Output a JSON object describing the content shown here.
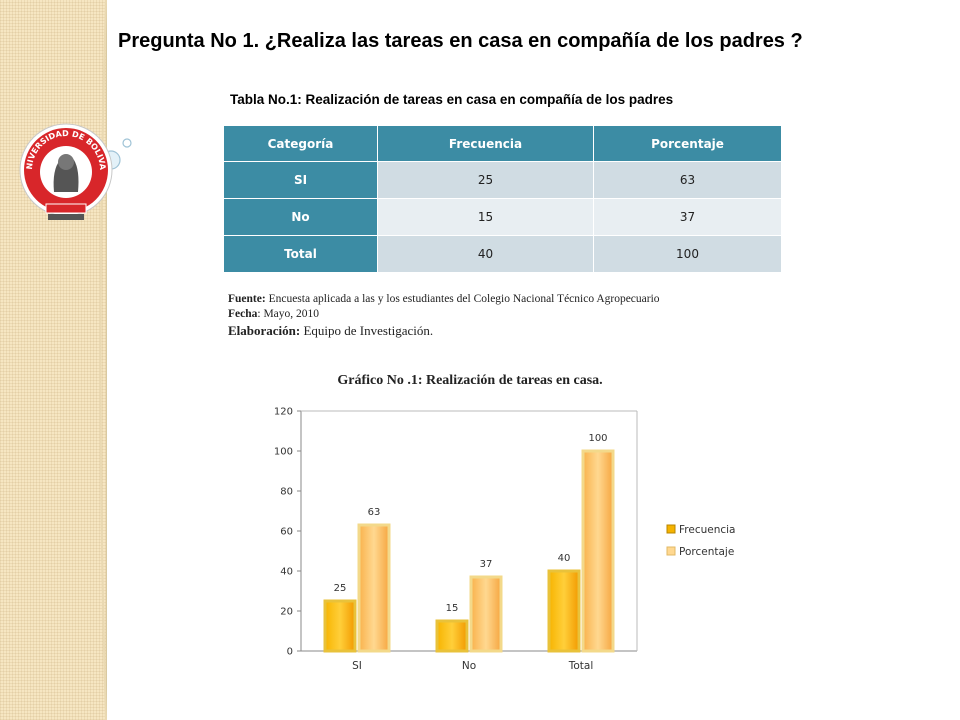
{
  "slide": {
    "title": "Pregunta No 1. ¿Realiza las tareas en casa en compañía de los padres ?"
  },
  "logo": {
    "text_top": "UNIVERSIDAD DE BOLIVAR",
    "icon": "university-seal-icon"
  },
  "table": {
    "caption": "Tabla No.1: Realización de tareas en casa en compañía de los padres",
    "headers": [
      "Categoría",
      "Frecuencia",
      "Porcentaje"
    ],
    "rows": [
      {
        "categoria": "SI",
        "frecuencia": "25",
        "porcentaje": "63"
      },
      {
        "categoria": "No",
        "frecuencia": "15",
        "porcentaje": "37"
      },
      {
        "categoria": "Total",
        "frecuencia": "40",
        "porcentaje": "100"
      }
    ],
    "colors": {
      "header": "#3c8ca4",
      "row_dark": "#d0dce3",
      "row_light": "#e8eef2"
    }
  },
  "notes": {
    "fuente_label": "Fuente:",
    "fuente_text": "Encuesta aplicada a las y los estudiantes del Colegio Nacional Técnico Agropecuario",
    "fecha_label": "Fecha",
    "fecha_text": ": Mayo, 2010",
    "elaboracion_label": "Elaboración:",
    "elaboracion_text": "Equipo de Investigación."
  },
  "chart_data": {
    "type": "bar",
    "title": "Gráfico  No .1:  Realización  de tareas en casa.",
    "categories": [
      "SI",
      "No",
      "Total"
    ],
    "series": [
      {
        "name": "Frecuencia",
        "values": [
          25,
          15,
          40
        ],
        "color": "#f5a800"
      },
      {
        "name": "Porcentaje",
        "values": [
          63,
          37,
          100
        ],
        "color": "#fbc262"
      }
    ],
    "ylim": [
      0,
      120
    ],
    "yticks": [
      0,
      20,
      40,
      60,
      80,
      100,
      120
    ],
    "grid": false,
    "legend": "right",
    "data_labels": true
  }
}
